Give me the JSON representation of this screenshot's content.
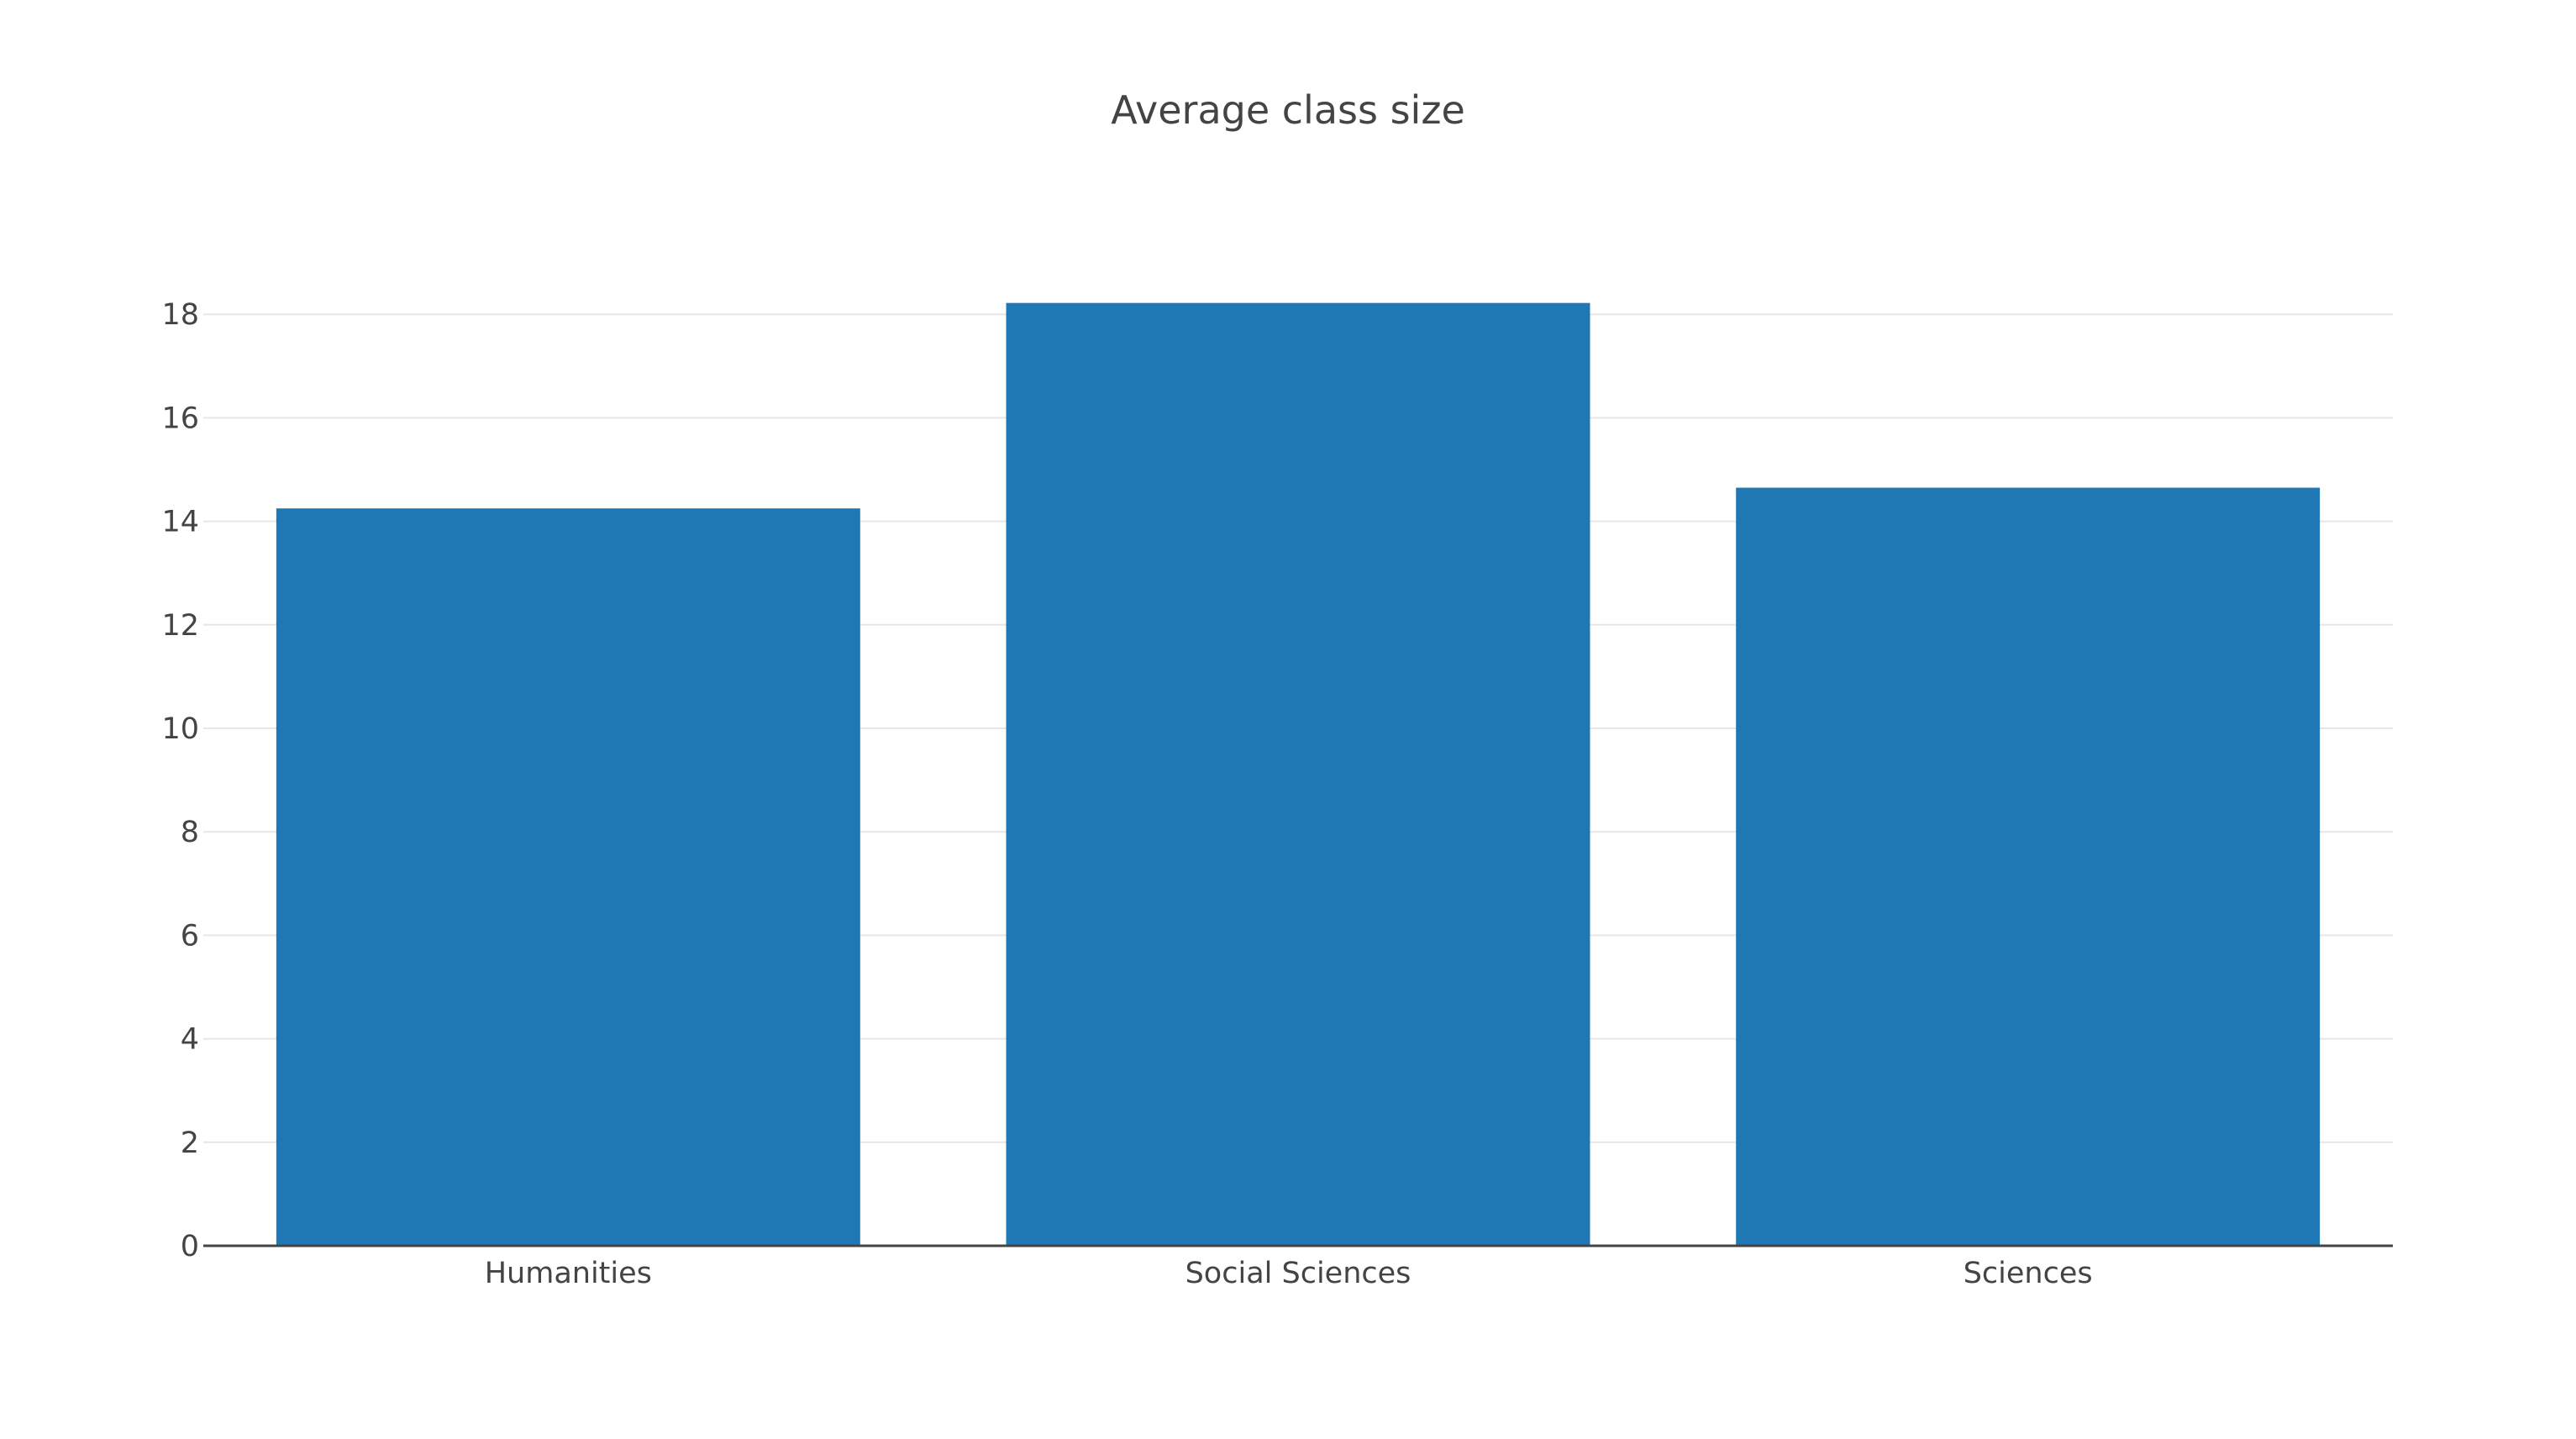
{
  "chart_data": {
    "type": "bar",
    "title": "Average class size",
    "xlabel": "",
    "ylabel": "",
    "categories": [
      "Humanities",
      "Social Sciences",
      "Sciences"
    ],
    "values": [
      14.25,
      18.22,
      14.65
    ],
    "ylim": [
      0,
      18.4
    ],
    "yticks": [
      0,
      2,
      4,
      6,
      8,
      10,
      12,
      14,
      16,
      18
    ],
    "ytick_labels": [
      "0",
      "2",
      "4",
      "6",
      "8",
      "10",
      "12",
      "14",
      "16",
      "18"
    ],
    "grid": true,
    "legend": "none",
    "bar_color": "#1f77b4",
    "gridline_color": "#e6e6e6",
    "text_color": "#444444"
  }
}
